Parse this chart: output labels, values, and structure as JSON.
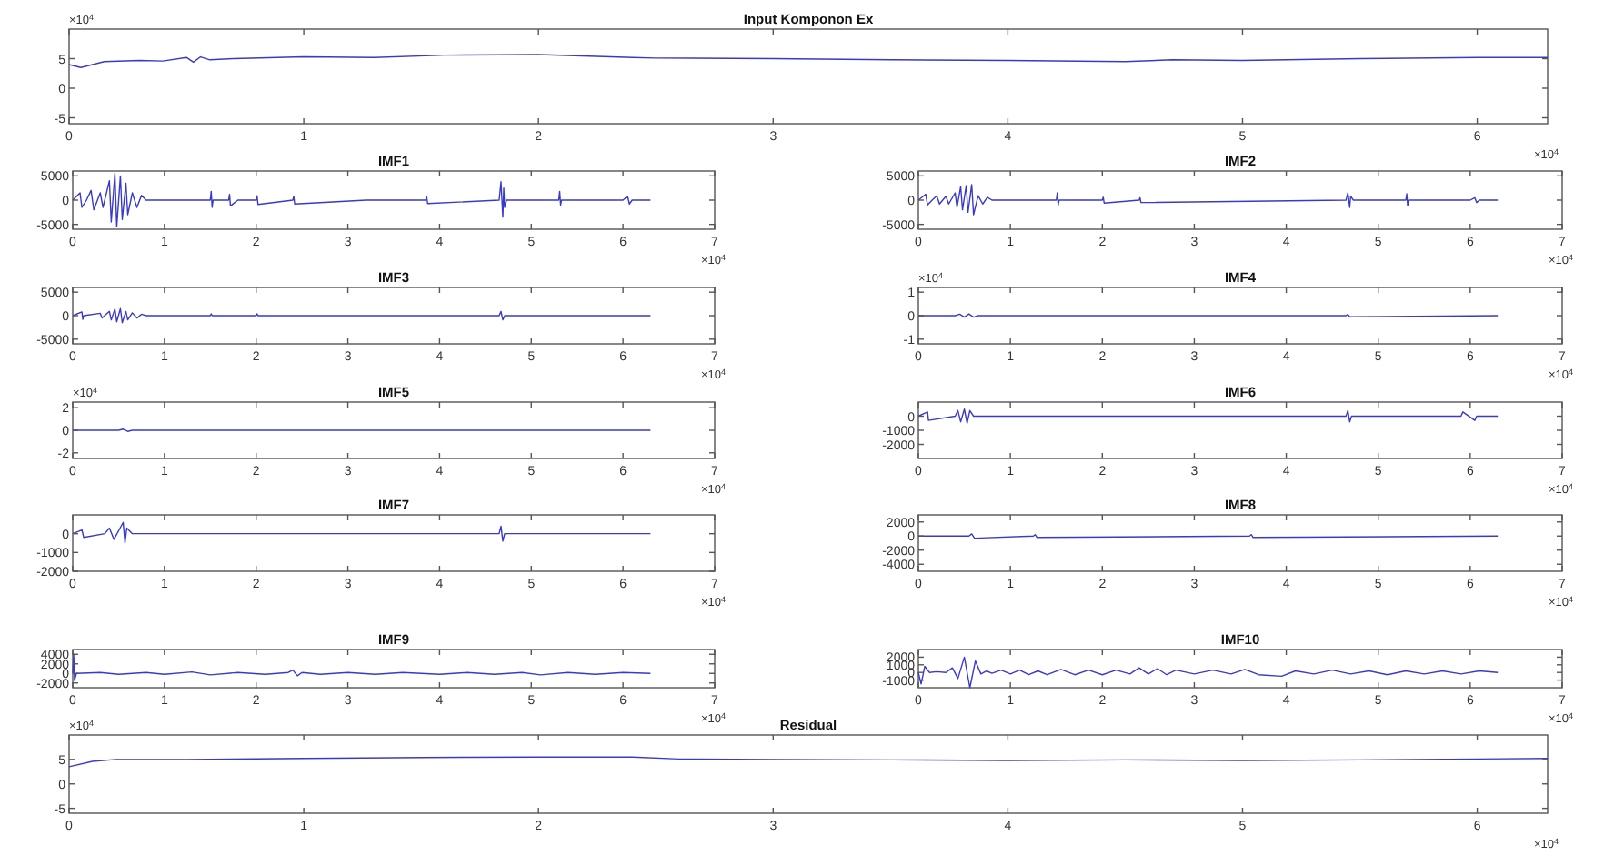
{
  "chart_data": [
    {
      "type": "line",
      "title": "Input Komponon Ex",
      "xlim": [
        0,
        6.3
      ],
      "xticks": [
        0,
        1,
        2,
        3,
        4,
        5,
        6
      ],
      "ylim": [
        -6,
        10
      ],
      "yticks": [
        -5,
        0,
        5
      ],
      "annotations": [
        "×10$^{4}$",
        "×10$^{4}$"
      ],
      "series": [
        {
          "color": "#3a3ac8",
          "x": [
            0,
            0.05,
            0.15,
            0.3,
            0.4,
            0.5,
            0.53,
            0.56,
            0.6,
            0.7,
            1,
            1.3,
            1.6,
            2,
            2.4,
            2.5,
            3,
            3.5,
            4,
            4.5,
            4.7,
            5,
            5.5,
            6,
            6.3
          ],
          "values": [
            4,
            3.5,
            4.5,
            4.7,
            4.6,
            5.2,
            4.4,
            5.3,
            4.8,
            5,
            5.3,
            5.2,
            5.6,
            5.7,
            5.2,
            5.1,
            5,
            4.8,
            4.7,
            4.5,
            4.8,
            4.7,
            5,
            5.2,
            5.2
          ]
        }
      ]
    },
    {
      "type": "line",
      "title": "IMF1",
      "xlim": [
        0,
        7
      ],
      "xticks": [
        0,
        1,
        2,
        3,
        4,
        5,
        6,
        7
      ],
      "ylim": [
        -6000,
        6000
      ],
      "yticks": [
        -5000,
        0,
        5000
      ],
      "annotations": [
        "×10$^{4}$"
      ],
      "series": [
        {
          "color": "#3a3ac8",
          "x": [
            0,
            0.08,
            0.1,
            0.15,
            0.2,
            0.23,
            0.3,
            0.33,
            0.4,
            0.42,
            0.46,
            0.48,
            0.52,
            0.54,
            0.58,
            0.6,
            0.65,
            0.7,
            0.75,
            0.8,
            1.5,
            1.51,
            1.52,
            1.53,
            1.7,
            1.71,
            1.72,
            1.8,
            2,
            2.01,
            2.02,
            2.4,
            2.41,
            2.42,
            3.2,
            3.85,
            3.86,
            3.87,
            4.65,
            4.67,
            4.69,
            4.7,
            4.71,
            4.73,
            5.3,
            5.31,
            5.32,
            5.33,
            6,
            6.05,
            6.07,
            6.1,
            6.3
          ],
          "values": [
            0,
            1500,
            -1500,
            0,
            2000,
            -2000,
            1500,
            -1500,
            4000,
            -4500,
            5500,
            -5500,
            5000,
            -4000,
            3500,
            -3000,
            1500,
            -1500,
            1000,
            0,
            0,
            1800,
            -1500,
            0,
            0,
            1200,
            -1200,
            0,
            0,
            900,
            -900,
            0,
            800,
            -800,
            0,
            0,
            700,
            -700,
            0,
            3800,
            -3500,
            2500,
            -1500,
            0,
            0,
            1800,
            -1000,
            0,
            0,
            800,
            -800,
            0,
            0
          ]
        }
      ]
    },
    {
      "type": "line",
      "title": "IMF2",
      "xlim": [
        0,
        7
      ],
      "xticks": [
        0,
        1,
        2,
        3,
        4,
        5,
        6,
        7
      ],
      "ylim": [
        -6000,
        6000
      ],
      "yticks": [
        -5000,
        0,
        5000
      ],
      "annotations": [
        "×10$^{4}$"
      ],
      "series": [
        {
          "color": "#3a3ac8",
          "x": [
            0,
            0.08,
            0.1,
            0.15,
            0.2,
            0.23,
            0.3,
            0.33,
            0.4,
            0.42,
            0.46,
            0.48,
            0.52,
            0.54,
            0.58,
            0.6,
            0.65,
            0.7,
            0.75,
            0.8,
            1.5,
            1.51,
            1.52,
            1.53,
            2,
            2.01,
            2.02,
            2.4,
            2.41,
            2.42,
            4.65,
            4.67,
            4.69,
            4.7,
            4.73,
            5.3,
            5.31,
            5.32,
            5.33,
            6,
            6.05,
            6.07,
            6.1,
            6.3
          ],
          "values": [
            0,
            1200,
            -1000,
            0,
            900,
            -800,
            800,
            -800,
            1500,
            -1500,
            2800,
            -2000,
            3000,
            -2500,
            3200,
            -3000,
            900,
            -800,
            600,
            0,
            0,
            1500,
            -1000,
            0,
            0,
            600,
            -600,
            0,
            500,
            -500,
            0,
            1500,
            -1500,
            800,
            0,
            0,
            1300,
            -1200,
            0,
            0,
            500,
            -500,
            0,
            0
          ]
        }
      ]
    },
    {
      "type": "line",
      "title": "IMF3",
      "xlim": [
        0,
        7
      ],
      "xticks": [
        0,
        1,
        2,
        3,
        4,
        5,
        6,
        7
      ],
      "ylim": [
        -6000,
        6000
      ],
      "yticks": [
        -5000,
        0,
        5000
      ],
      "annotations": [
        "×10$^{4}$"
      ],
      "series": [
        {
          "color": "#3a3ac8",
          "x": [
            0,
            0.1,
            0.11,
            0.12,
            0.3,
            0.32,
            0.4,
            0.42,
            0.46,
            0.48,
            0.52,
            0.54,
            0.58,
            0.6,
            0.65,
            0.7,
            0.75,
            0.8,
            1.5,
            1.51,
            1.52,
            2,
            2.01,
            2.02,
            4.65,
            4.67,
            4.69,
            4.71,
            6.3
          ],
          "values": [
            0,
            800,
            -800,
            0,
            500,
            -500,
            900,
            -900,
            1400,
            -1300,
            1500,
            -1500,
            900,
            -900,
            600,
            -500,
            300,
            0,
            0,
            400,
            0,
            0,
            400,
            0,
            0,
            900,
            -900,
            0,
            0
          ]
        }
      ]
    },
    {
      "type": "line",
      "title": "IMF4",
      "xlim": [
        0,
        7
      ],
      "xticks": [
        0,
        1,
        2,
        3,
        4,
        5,
        6,
        7
      ],
      "ylim": [
        -1.2,
        1.2
      ],
      "yticks": [
        -1,
        0,
        1
      ],
      "annotations": [
        "×10$^{4}$",
        "×10$^{4}$"
      ],
      "series": [
        {
          "color": "#3a3ac8",
          "x": [
            0,
            0.4,
            0.45,
            0.5,
            0.55,
            0.6,
            0.65,
            2,
            4.65,
            4.67,
            4.69,
            6.3
          ],
          "values": [
            0,
            0,
            0.06,
            -0.06,
            0.07,
            -0.06,
            0,
            0,
            0,
            0.05,
            -0.05,
            0
          ]
        }
      ]
    },
    {
      "type": "line",
      "title": "IMF5",
      "xlim": [
        0,
        7
      ],
      "xticks": [
        0,
        1,
        2,
        3,
        4,
        5,
        6,
        7
      ],
      "ylim": [
        -2.5,
        2.5
      ],
      "yticks": [
        -2,
        0,
        2
      ],
      "annotations": [
        "×10$^{4}$",
        "×10$^{4}$"
      ],
      "series": [
        {
          "color": "#3a3ac8",
          "x": [
            0,
            0.5,
            0.55,
            0.6,
            0.65,
            6.3
          ],
          "values": [
            0,
            0,
            0.1,
            -0.1,
            0,
            0
          ]
        }
      ]
    },
    {
      "type": "line",
      "title": "IMF6",
      "xlim": [
        0,
        7
      ],
      "xticks": [
        0,
        1,
        2,
        3,
        4,
        5,
        6,
        7
      ],
      "ylim": [
        -3000,
        1000
      ],
      "yticks": [
        -2000,
        -1000,
        0
      ],
      "annotations": [
        "×10$^{4}$"
      ],
      "series": [
        {
          "color": "#3a3ac8",
          "x": [
            0,
            0.1,
            0.11,
            0.4,
            0.43,
            0.46,
            0.5,
            0.53,
            0.56,
            0.6,
            0.8,
            4.65,
            4.67,
            4.69,
            4.71,
            5.9,
            5.92,
            6.05,
            6.07,
            6.3
          ],
          "values": [
            0,
            300,
            -300,
            0,
            400,
            -400,
            500,
            -500,
            400,
            0,
            0,
            0,
            400,
            -400,
            0,
            0,
            300,
            -300,
            0,
            0
          ]
        }
      ]
    },
    {
      "type": "line",
      "title": "IMF7",
      "xlim": [
        0,
        7
      ],
      "xticks": [
        0,
        1,
        2,
        3,
        4,
        5,
        6,
        7
      ],
      "ylim": [
        -2000,
        1000
      ],
      "yticks": [
        -2000,
        -1000,
        0
      ],
      "annotations": [
        "×10$^{4}$"
      ],
      "series": [
        {
          "color": "#3a3ac8",
          "x": [
            0,
            0.1,
            0.12,
            0.35,
            0.4,
            0.45,
            0.55,
            0.57,
            0.59,
            0.65,
            0.8,
            4.65,
            4.67,
            4.69,
            4.71,
            6.3
          ],
          "values": [
            0,
            200,
            -200,
            0,
            300,
            -300,
            600,
            -500,
            300,
            0,
            0,
            0,
            400,
            -400,
            0,
            0
          ]
        }
      ]
    },
    {
      "type": "line",
      "title": "IMF8",
      "xlim": [
        0,
        7
      ],
      "xticks": [
        0,
        1,
        2,
        3,
        4,
        5,
        6,
        7
      ],
      "ylim": [
        -5000,
        3000
      ],
      "yticks": [
        -4000,
        -2000,
        0,
        2000
      ],
      "annotations": [
        "×10$^{4}$"
      ],
      "series": [
        {
          "color": "#3a3ac8",
          "x": [
            0,
            0.55,
            0.58,
            0.61,
            1.25,
            1.27,
            1.29,
            3.6,
            3.62,
            3.64,
            6.3
          ],
          "values": [
            0,
            0,
            300,
            -300,
            0,
            200,
            -200,
            0,
            200,
            -200,
            0
          ]
        }
      ]
    },
    {
      "type": "line",
      "title": "IMF9",
      "xlim": [
        0,
        7
      ],
      "xticks": [
        0,
        1,
        2,
        3,
        4,
        5,
        6,
        7
      ],
      "ylim": [
        -3000,
        5000
      ],
      "yticks": [
        -2000,
        0,
        2000,
        4000
      ],
      "annotations": [
        "×10$^{4}$"
      ],
      "series": [
        {
          "color": "#3a3ac8",
          "x": [
            0,
            0.01,
            0.02,
            0.04,
            0.3,
            0.5,
            0.8,
            1,
            1.3,
            1.5,
            1.8,
            2.1,
            2.35,
            2.4,
            2.45,
            2.5,
            2.7,
            3,
            3.3,
            3.6,
            4,
            4.3,
            4.6,
            4.9,
            5.1,
            5.4,
            5.7,
            6,
            6.3
          ],
          "values": [
            0,
            4000,
            -1500,
            0,
            200,
            -200,
            200,
            -200,
            300,
            -300,
            200,
            -200,
            200,
            700,
            -500,
            200,
            -200,
            200,
            -200,
            200,
            -200,
            200,
            -200,
            200,
            -300,
            200,
            -200,
            200,
            0
          ]
        }
      ]
    },
    {
      "type": "line",
      "title": "IMF10",
      "xlim": [
        0,
        7
      ],
      "xticks": [
        0,
        1,
        2,
        3,
        4,
        5,
        6,
        7
      ],
      "ylim": [
        -2000,
        3000
      ],
      "yticks": [
        -1000,
        0,
        1000,
        2000
      ],
      "annotations": [
        "×10$^{4}$"
      ],
      "series": [
        {
          "color": "#3a3ac8",
          "x": [
            0,
            0.03,
            0.07,
            0.12,
            0.2,
            0.3,
            0.37,
            0.43,
            0.5,
            0.56,
            0.62,
            0.68,
            0.74,
            0.8,
            0.9,
            1,
            1.1,
            1.2,
            1.3,
            1.4,
            1.55,
            1.7,
            1.85,
            2,
            2.15,
            2.3,
            2.4,
            2.5,
            2.6,
            2.7,
            2.8,
            3,
            3.2,
            3.4,
            3.55,
            3.7,
            3.95,
            4.1,
            4.3,
            4.5,
            4.7,
            4.9,
            5.1,
            5.3,
            5.5,
            5.7,
            5.9,
            6.1,
            6.3
          ],
          "values": [
            0,
            -1500,
            800,
            0,
            100,
            0,
            600,
            -800,
            2000,
            -2000,
            1500,
            -200,
            200,
            -100,
            300,
            -200,
            300,
            -300,
            200,
            -300,
            400,
            -300,
            300,
            -300,
            300,
            -200,
            600,
            -200,
            500,
            -300,
            300,
            -200,
            300,
            -200,
            400,
            -300,
            -500,
            200,
            -200,
            300,
            -200,
            200,
            -300,
            200,
            -200,
            200,
            -200,
            200,
            0
          ]
        }
      ]
    },
    {
      "type": "line",
      "title": "Residual",
      "xlim": [
        0,
        6.3
      ],
      "xticks": [
        0,
        1,
        2,
        3,
        4,
        5,
        6
      ],
      "ylim": [
        -6,
        10
      ],
      "yticks": [
        -5,
        0,
        5
      ],
      "annotations": [
        "×10$^{4}$",
        "×10$^{4}$"
      ],
      "series": [
        {
          "color": "#3a3ac8",
          "x": [
            0,
            0.1,
            0.2,
            0.5,
            1,
            1.5,
            2,
            2.4,
            2.6,
            3,
            3.5,
            4,
            4.5,
            5,
            5.5,
            6,
            6.3
          ],
          "values": [
            3.5,
            4.6,
            5,
            5,
            5.2,
            5.4,
            5.5,
            5.5,
            5.1,
            5,
            4.9,
            4.8,
            4.9,
            4.8,
            4.9,
            5.1,
            5.2
          ]
        }
      ]
    }
  ]
}
